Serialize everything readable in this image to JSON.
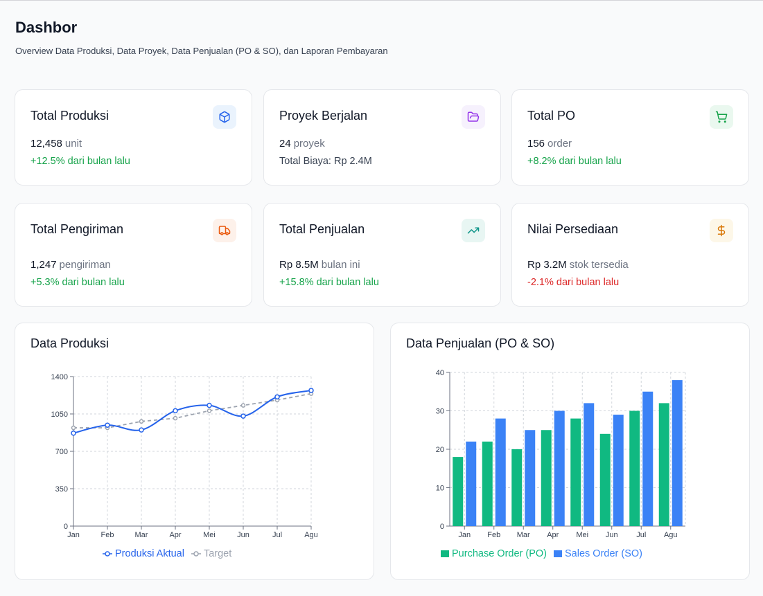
{
  "header": {
    "title": "Dashbor",
    "subtitle": "Overview Data Produksi, Data Proyek, Data Penjualan (PO & SO), dan Laporan Pembayaran"
  },
  "stats": [
    {
      "title": "Total Produksi",
      "value": "12,458",
      "unit": "unit",
      "change": "+12.5% dari bulan lalu",
      "icon": "box-icon",
      "icon_color": "#2563eb",
      "icon_bg": "#eaf3fd"
    },
    {
      "title": "Proyek Berjalan",
      "value": "24",
      "unit": "proyek",
      "change": "Total Biaya: Rp 2.4M",
      "icon": "folder-icon",
      "icon_color": "#9333ea",
      "icon_bg": "#f6f1fd"
    },
    {
      "title": "Total PO",
      "value": "156",
      "unit": "order",
      "change": "+8.2% dari bulan lalu",
      "icon": "cart-icon",
      "icon_color": "#16a34a",
      "icon_bg": "#eaf8ef"
    },
    {
      "title": "Total Pengiriman",
      "value": "1,247",
      "unit": "pengiriman",
      "change": "+5.3% dari bulan lalu",
      "icon": "truck-icon",
      "icon_color": "#ea580c",
      "icon_bg": "#fdf1ea"
    },
    {
      "title": "Total Penjualan",
      "value": "Rp 8.5M",
      "unit": "bulan ini",
      "change": "+15.8% dari bulan lalu",
      "icon": "trending-up-icon",
      "icon_color": "#0d9488",
      "icon_bg": "#e8f6f3"
    },
    {
      "title": "Nilai Persediaan",
      "value": "Rp 3.2M",
      "unit": "stok tersedia",
      "change": "-2.1% dari bulan lalu",
      "icon": "dollar-icon",
      "icon_color": "#d97706",
      "icon_bg": "#fdf7e8"
    }
  ],
  "production_chart": {
    "title": "Data Produksi",
    "legend_actual": "Produksi Aktual",
    "legend_target": "Target"
  },
  "sales_chart": {
    "title": "Data Penjualan (PO & SO)",
    "legend_po": "Purchase Order (PO)",
    "legend_so": "Sales Order (SO)"
  },
  "chart_data": [
    {
      "type": "line",
      "title": "Data Produksi",
      "categories": [
        "Jan",
        "Feb",
        "Mar",
        "Apr",
        "Mei",
        "Jun",
        "Jul",
        "Agu"
      ],
      "series": [
        {
          "name": "Produksi Aktual",
          "values": [
            870,
            945,
            900,
            1080,
            1130,
            1030,
            1210,
            1270
          ],
          "color": "#2563eb"
        },
        {
          "name": "Target",
          "values": [
            920,
            920,
            980,
            1010,
            1080,
            1130,
            1180,
            1240
          ],
          "color": "#9ca3af"
        }
      ],
      "yticks": [
        0,
        350,
        700,
        1050,
        1400
      ],
      "ylim": [
        0,
        1400
      ],
      "grid": true,
      "legend": "bottom"
    },
    {
      "type": "bar",
      "title": "Data Penjualan (PO & SO)",
      "categories": [
        "Jan",
        "Feb",
        "Mar",
        "Apr",
        "Mei",
        "Jun",
        "Jul",
        "Agu"
      ],
      "series": [
        {
          "name": "Purchase Order (PO)",
          "values": [
            18,
            22,
            20,
            25,
            28,
            24,
            30,
            32
          ],
          "color": "#10b981"
        },
        {
          "name": "Sales Order (SO)",
          "values": [
            22,
            28,
            25,
            30,
            32,
            29,
            35,
            38
          ],
          "color": "#3b82f6"
        }
      ],
      "yticks": [
        0,
        10,
        20,
        30,
        40
      ],
      "ylim": [
        0,
        40
      ],
      "grid": true,
      "legend": "bottom"
    }
  ]
}
